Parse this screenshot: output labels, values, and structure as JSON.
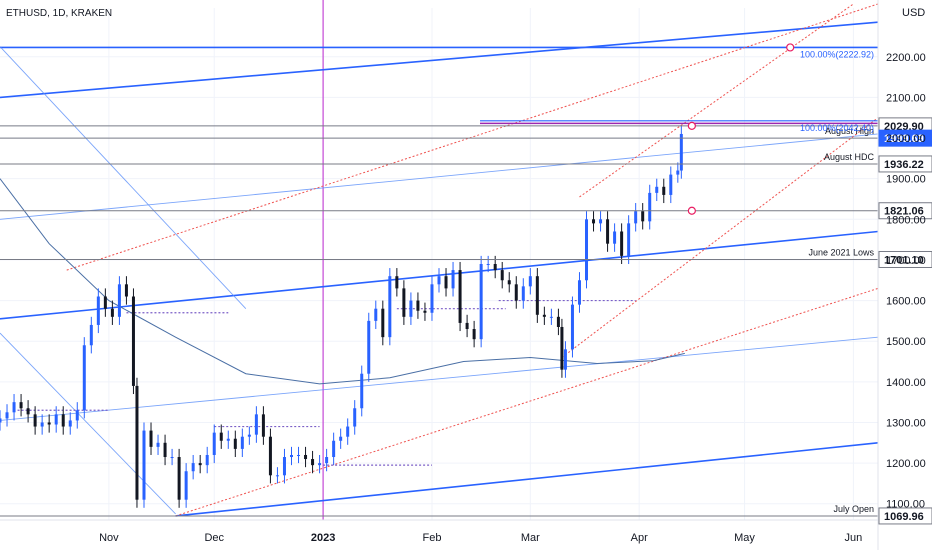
{
  "chart_data": {
    "type": "candlestick",
    "title": "ETHUSD, 1D, KRAKEN",
    "currency": "USD",
    "ylim": [
      1060,
      2320
    ],
    "xlim": [
      "2022-10-01",
      "2023-06-08"
    ],
    "y_ticks": [
      1100,
      1200,
      1300,
      1400,
      1500,
      1600,
      1700,
      1800,
      1900,
      2000,
      2100,
      2200
    ],
    "y_tick_labels": [
      "1100.00",
      "1200.00",
      "1300.00",
      "1400.00",
      "1500.00",
      "1600.00",
      "1700.00",
      "1800.00",
      "1900.00",
      "2000.00",
      "2100.00",
      "2200.00"
    ],
    "x_ticks": [
      {
        "label": "Nov",
        "date": "2022-11-01"
      },
      {
        "label": "Dec",
        "date": "2022-12-01"
      },
      {
        "label": "2023",
        "date": "2023-01-01"
      },
      {
        "label": "Feb",
        "date": "2023-02-01"
      },
      {
        "label": "Mar",
        "date": "2023-03-01"
      },
      {
        "label": "Apr",
        "date": "2023-04-01"
      },
      {
        "label": "May",
        "date": "2023-05-01"
      },
      {
        "label": "Jun",
        "date": "2023-06-01"
      }
    ],
    "grid": true,
    "colors": {
      "up": "#2962ff",
      "down": "#131722",
      "level": "#131722",
      "channel": "#2962ff",
      "fib": "#2962ff",
      "pitchfork": "#ef5350",
      "marker": "#e91e63",
      "divider": "#c549d6"
    },
    "closes": [
      [
        "2022-10-01",
        1310
      ],
      [
        "2022-10-03",
        1325
      ],
      [
        "2022-10-05",
        1350
      ],
      [
        "2022-10-07",
        1335
      ],
      [
        "2022-10-09",
        1320
      ],
      [
        "2022-10-11",
        1290
      ],
      [
        "2022-10-13",
        1300
      ],
      [
        "2022-10-15",
        1295
      ],
      [
        "2022-10-17",
        1320
      ],
      [
        "2022-10-19",
        1290
      ],
      [
        "2022-10-21",
        1305
      ],
      [
        "2022-10-23",
        1330
      ],
      [
        "2022-10-25",
        1490
      ],
      [
        "2022-10-27",
        1540
      ],
      [
        "2022-10-29",
        1610
      ],
      [
        "2022-10-31",
        1580
      ],
      [
        "2022-11-02",
        1560
      ],
      [
        "2022-11-04",
        1640
      ],
      [
        "2022-11-06",
        1610
      ],
      [
        "2022-11-08",
        1390
      ],
      [
        "2022-11-09",
        1110
      ],
      [
        "2022-11-11",
        1280
      ],
      [
        "2022-11-13",
        1240
      ],
      [
        "2022-11-15",
        1250
      ],
      [
        "2022-11-17",
        1215
      ],
      [
        "2022-11-19",
        1215
      ],
      [
        "2022-11-21",
        1110
      ],
      [
        "2022-11-23",
        1180
      ],
      [
        "2022-11-25",
        1200
      ],
      [
        "2022-11-27",
        1195
      ],
      [
        "2022-11-29",
        1220
      ],
      [
        "2022-12-01",
        1275
      ],
      [
        "2022-12-03",
        1255
      ],
      [
        "2022-12-05",
        1260
      ],
      [
        "2022-12-07",
        1235
      ],
      [
        "2022-12-09",
        1265
      ],
      [
        "2022-12-11",
        1270
      ],
      [
        "2022-12-13",
        1320
      ],
      [
        "2022-12-15",
        1265
      ],
      [
        "2022-12-17",
        1170
      ],
      [
        "2022-12-19",
        1170
      ],
      [
        "2022-12-21",
        1215
      ],
      [
        "2022-12-23",
        1220
      ],
      [
        "2022-12-25",
        1220
      ],
      [
        "2022-12-27",
        1210
      ],
      [
        "2022-12-29",
        1195
      ],
      [
        "2022-12-31",
        1200
      ],
      [
        "2023-01-02",
        1215
      ],
      [
        "2023-01-04",
        1255
      ],
      [
        "2023-01-06",
        1265
      ],
      [
        "2023-01-08",
        1290
      ],
      [
        "2023-01-10",
        1335
      ],
      [
        "2023-01-12",
        1420
      ],
      [
        "2023-01-14",
        1550
      ],
      [
        "2023-01-16",
        1580
      ],
      [
        "2023-01-18",
        1510
      ],
      [
        "2023-01-20",
        1660
      ],
      [
        "2023-01-22",
        1630
      ],
      [
        "2023-01-24",
        1560
      ],
      [
        "2023-01-26",
        1600
      ],
      [
        "2023-01-28",
        1575
      ],
      [
        "2023-01-30",
        1570
      ],
      [
        "2023-02-01",
        1640
      ],
      [
        "2023-02-03",
        1660
      ],
      [
        "2023-02-05",
        1630
      ],
      [
        "2023-02-07",
        1675
      ],
      [
        "2023-02-09",
        1545
      ],
      [
        "2023-02-11",
        1530
      ],
      [
        "2023-02-13",
        1505
      ],
      [
        "2023-02-15",
        1690
      ],
      [
        "2023-02-17",
        1690
      ],
      [
        "2023-02-19",
        1675
      ],
      [
        "2023-02-21",
        1650
      ],
      [
        "2023-02-23",
        1640
      ],
      [
        "2023-02-25",
        1600
      ],
      [
        "2023-02-27",
        1635
      ],
      [
        "2023-03-01",
        1660
      ],
      [
        "2023-03-03",
        1565
      ],
      [
        "2023-03-05",
        1560
      ],
      [
        "2023-03-07",
        1560
      ],
      [
        "2023-03-09",
        1535
      ],
      [
        "2023-03-10",
        1430
      ],
      [
        "2023-03-11",
        1480
      ],
      [
        "2023-03-13",
        1590
      ],
      [
        "2023-03-15",
        1650
      ],
      [
        "2023-03-17",
        1800
      ],
      [
        "2023-03-19",
        1790
      ],
      [
        "2023-03-21",
        1800
      ],
      [
        "2023-03-23",
        1740
      ],
      [
        "2023-03-25",
        1770
      ],
      [
        "2023-03-27",
        1710
      ],
      [
        "2023-03-29",
        1790
      ],
      [
        "2023-03-31",
        1820
      ],
      [
        "2023-04-02",
        1795
      ],
      [
        "2023-04-04",
        1865
      ],
      [
        "2023-04-06",
        1880
      ],
      [
        "2023-04-08",
        1860
      ],
      [
        "2023-04-10",
        1910
      ],
      [
        "2023-04-12",
        1920
      ],
      [
        "2023-04-13",
        2010
      ]
    ],
    "moving_average": [
      [
        "2022-10-01",
        1900
      ],
      [
        "2022-10-15",
        1740
      ],
      [
        "2022-11-01",
        1600
      ],
      [
        "2022-11-20",
        1510
      ],
      [
        "2022-12-10",
        1420
      ],
      [
        "2022-12-31",
        1395
      ],
      [
        "2023-01-20",
        1410
      ],
      [
        "2023-02-10",
        1450
      ],
      [
        "2023-03-01",
        1460
      ],
      [
        "2023-03-20",
        1445
      ],
      [
        "2023-04-05",
        1452
      ],
      [
        "2023-04-14",
        1470
      ]
    ],
    "horizontal_levels": [
      {
        "value": 2029.9,
        "label": "2029.90",
        "annotation": "",
        "color": "#131722"
      },
      {
        "value": 1999.69,
        "label": "1999.69",
        "annotation": "August High",
        "color": "#2962ff"
      },
      {
        "value": 1936.22,
        "label": "1936.22",
        "annotation": "August HDC",
        "color": "#131722"
      },
      {
        "value": 1821.06,
        "label": "1821.06",
        "annotation": "",
        "color": "#131722"
      },
      {
        "value": 1701.1,
        "label": "1701.10",
        "annotation": "June 2021 Lows",
        "color": "#131722"
      },
      {
        "value": 1069.96,
        "label": "1069.96",
        "annotation": "July Open",
        "color": "#131722"
      }
    ],
    "fib_labels": [
      {
        "text": "100.00%(2222.92)",
        "value": 2222.92
      },
      {
        "text": "100.00%(2042.40)",
        "value": 2042.4
      }
    ],
    "channel_lines": [
      [
        [
          "2022-10-01",
          2100
        ],
        [
          "2023-06-08",
          2285
        ]
      ],
      [
        [
          "2022-10-01",
          2222.92
        ],
        [
          "2023-06-08",
          2222.92
        ]
      ],
      [
        [
          "2022-11-20",
          1070
        ],
        [
          "2023-06-08",
          1250
        ]
      ],
      [
        [
          "2022-10-01",
          1555
        ],
        [
          "2023-06-08",
          1770
        ]
      ]
    ],
    "thin_lines": [
      [
        [
          "2022-10-01",
          1800
        ],
        [
          "2023-06-08",
          2010
        ]
      ],
      [
        [
          "2022-10-01",
          1305
        ],
        [
          "2023-06-08",
          1510
        ]
      ],
      [
        [
          "2022-10-01",
          1520
        ],
        [
          "2022-11-20",
          1075
        ]
      ],
      [
        [
          "2022-10-01",
          2225
        ],
        [
          "2022-12-10",
          1580
        ]
      ]
    ],
    "pitchfork_lines": [
      [
        [
          "2022-10-20",
          1675
        ],
        [
          "2023-06-08",
          2330
        ]
      ],
      [
        [
          "2022-11-20",
          1070
        ],
        [
          "2023-06-08",
          1630
        ]
      ],
      [
        [
          "2023-03-15",
          1855
        ],
        [
          "2023-06-01",
          2330
        ]
      ],
      [
        [
          "2023-03-10",
          1460
        ],
        [
          "2023-06-08",
          2050
        ]
      ]
    ],
    "dotted_levels": [
      {
        "value": 1330,
        "from": "2022-10-06",
        "to": "2022-11-01"
      },
      {
        "value": 1570,
        "from": "2022-11-06",
        "to": "2022-12-05"
      },
      {
        "value": 1290,
        "from": "2022-12-01",
        "to": "2022-12-31"
      },
      {
        "value": 1195,
        "from": "2023-01-01",
        "to": "2023-02-01"
      },
      {
        "value": 1580,
        "from": "2023-01-22",
        "to": "2023-02-22"
      },
      {
        "value": 1600,
        "from": "2023-02-20",
        "to": "2023-03-31"
      }
    ],
    "markers": [
      {
        "date": "2023-05-14",
        "value": 2222.92
      },
      {
        "date": "2023-04-16",
        "value": 2029.9
      },
      {
        "date": "2023-04-16",
        "value": 1821.06
      }
    ],
    "vertical_line": "2023-01-01"
  }
}
